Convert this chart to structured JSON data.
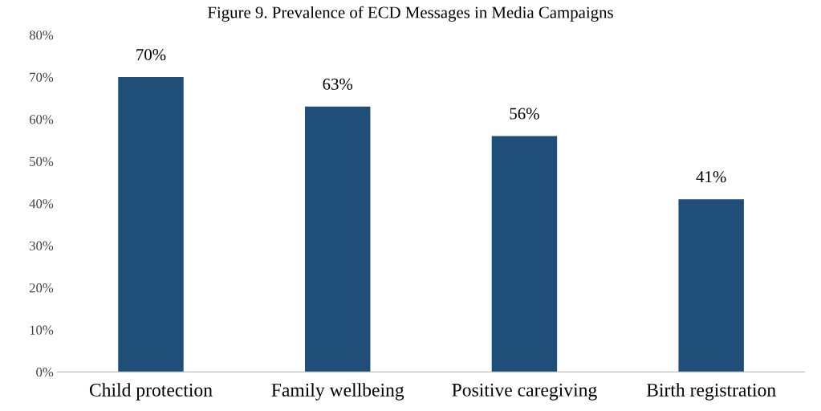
{
  "chart_data": {
    "type": "bar",
    "title": "Figure 9. Prevalence of ECD Messages in Media Campaigns",
    "categories": [
      "Child protection",
      "Family wellbeing",
      "Positive caregiving",
      "Birth registration"
    ],
    "values": [
      70,
      63,
      56,
      41
    ],
    "color": "#1f4e79",
    "ylim": [
      0,
      80
    ],
    "yticks": [
      {
        "value": 0,
        "label": "0%"
      },
      {
        "value": 10,
        "label": "10%"
      },
      {
        "value": 20,
        "label": "20%"
      },
      {
        "value": 30,
        "label": "30%"
      },
      {
        "value": 40,
        "label": "40%"
      },
      {
        "value": 50,
        "label": "50%"
      },
      {
        "value": 60,
        "label": "60%"
      },
      {
        "value": 70,
        "label": "70%"
      },
      {
        "value": 80,
        "label": "80%"
      }
    ],
    "value_labels": [
      "70%",
      "63%",
      "56%",
      "41%"
    ],
    "grid": false,
    "legend": false
  }
}
